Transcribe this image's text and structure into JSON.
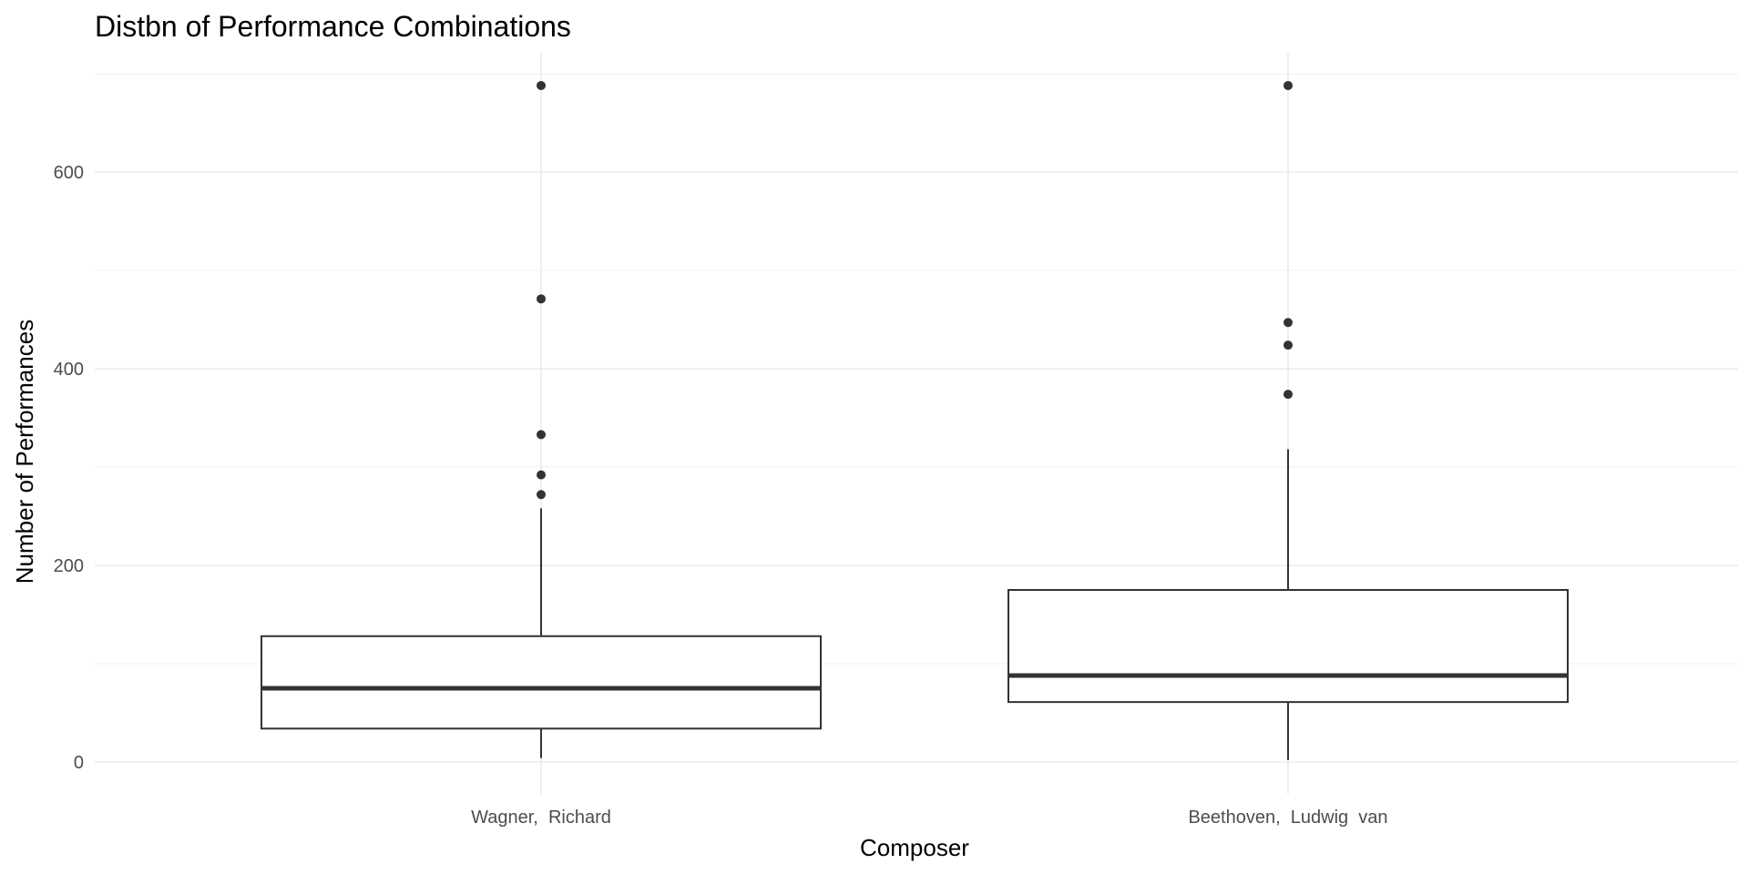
{
  "chart_data": {
    "type": "box",
    "title": "Distbn of Performance Combinations",
    "xlabel": "Composer",
    "ylabel": "Number of Performances",
    "ylim": [
      -30,
      720
    ],
    "yticks": [
      0,
      200,
      400,
      600
    ],
    "grid": true,
    "categories": [
      "Wagner,  Richard",
      "Beethoven,  Ludwig  van"
    ],
    "boxes": [
      {
        "category": "Wagner,  Richard",
        "whisker_low": 4,
        "q1": 34,
        "median": 75,
        "q3": 128,
        "whisker_high": 258,
        "outliers": [
          272,
          292,
          333,
          471,
          688
        ]
      },
      {
        "category": "Beethoven,  Ludwig  van",
        "whisker_low": 2,
        "q1": 61,
        "median": 88,
        "q3": 175,
        "whisker_high": 318,
        "outliers": [
          374,
          424,
          447,
          688
        ]
      }
    ]
  }
}
